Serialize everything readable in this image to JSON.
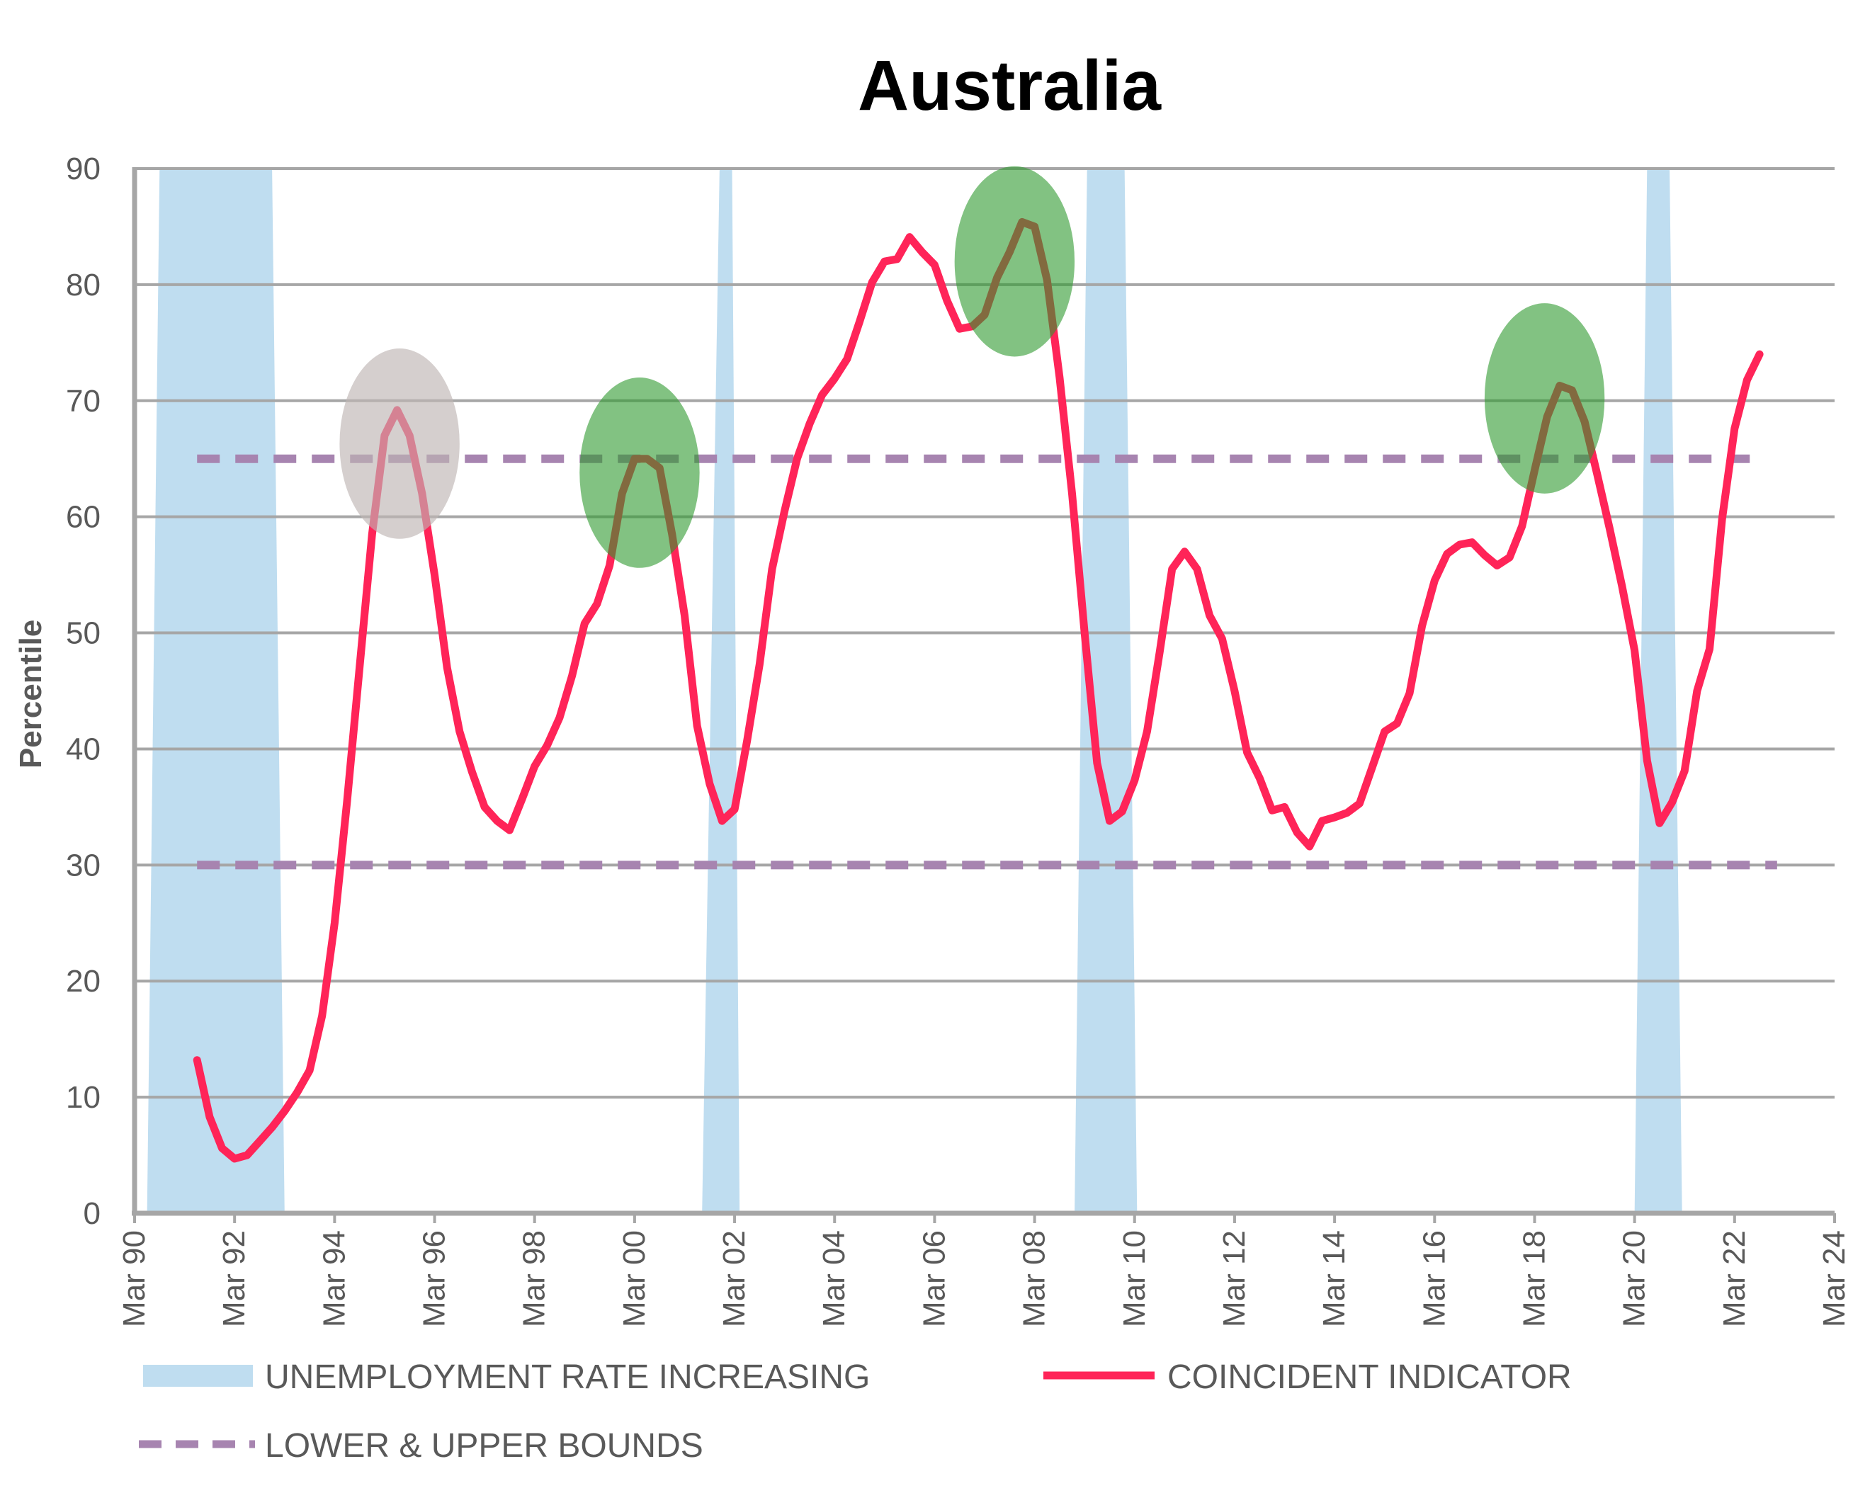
{
  "chart_data": {
    "type": "line",
    "title": "Australia",
    "ylabel": "Percentile",
    "xlabel": "",
    "ylim": [
      0,
      90
    ],
    "yticks": [
      0,
      10,
      20,
      30,
      40,
      50,
      60,
      70,
      80,
      90
    ],
    "xlim": [
      1990.0,
      2024.0
    ],
    "xticks": [
      {
        "value": 1990,
        "label": "Mar 90"
      },
      {
        "value": 1992,
        "label": "Mar 92"
      },
      {
        "value": 1994,
        "label": "Mar 94"
      },
      {
        "value": 1996,
        "label": "Mar 96"
      },
      {
        "value": 1998,
        "label": "Mar 98"
      },
      {
        "value": 2000,
        "label": "Mar 00"
      },
      {
        "value": 2002,
        "label": "Mar 02"
      },
      {
        "value": 2004,
        "label": "Mar 04"
      },
      {
        "value": 2006,
        "label": "Mar 06"
      },
      {
        "value": 2008,
        "label": "Mar 08"
      },
      {
        "value": 2010,
        "label": "Mar 10"
      },
      {
        "value": 2012,
        "label": "Mar 12"
      },
      {
        "value": 2014,
        "label": "Mar 14"
      },
      {
        "value": 2016,
        "label": "Mar 16"
      },
      {
        "value": 2018,
        "label": "Mar 18"
      },
      {
        "value": 2020,
        "label": "Mar 20"
      },
      {
        "value": 2022,
        "label": "Mar 22"
      },
      {
        "value": 2024,
        "label": "Mar 24"
      }
    ],
    "grid": true,
    "colors": {
      "indicator": "#FF2458",
      "bounds": "#A784B0",
      "shading": "#BFDDF0",
      "highlight": "#2E9A2E",
      "highlight_gray": "#BEB6B4",
      "grid": "#A6A6A6",
      "axis": "#A6A6A6"
    },
    "shaded_regions": {
      "name": "UNEMPLOYMENT RATE INCREASING",
      "regions": [
        {
          "top_start": 1990.5,
          "top_end": 1992.75,
          "bottom_start": 1990.25,
          "bottom_end": 1993.0
        },
        {
          "top_start": 2001.7,
          "top_end": 2001.95,
          "bottom_start": 2001.35,
          "bottom_end": 2002.1
        },
        {
          "top_start": 2009.05,
          "top_end": 2009.8,
          "bottom_start": 2008.8,
          "bottom_end": 2010.05
        },
        {
          "top_start": 2020.25,
          "top_end": 2020.7,
          "bottom_start": 2020.0,
          "bottom_end": 2020.95
        }
      ]
    },
    "bounds": {
      "name": "LOWER & UPPER BOUNDS",
      "upper": {
        "value": 65,
        "x": [
          1991.25,
          2022.6
        ]
      },
      "lower": {
        "value": 30,
        "x": [
          1991.25,
          2022.85
        ]
      }
    },
    "highlights": [
      {
        "cx": 1995.3,
        "cy": 66.3,
        "rx": 1.2,
        "ry": 8.2,
        "color": "gray"
      },
      {
        "cx": 2000.1,
        "cy": 63.8,
        "rx": 1.2,
        "ry": 8.2,
        "color": "green"
      },
      {
        "cx": 2007.6,
        "cy": 82.0,
        "rx": 1.2,
        "ry": 8.2,
        "color": "green"
      },
      {
        "cx": 2018.2,
        "cy": 70.2,
        "rx": 1.2,
        "ry": 8.2,
        "color": "green"
      }
    ],
    "series": [
      {
        "name": "COINCIDENT INDICATOR",
        "x": [
          1991.25,
          1991.5,
          1991.75,
          1992.0,
          1992.25,
          1992.5,
          1992.75,
          1993.0,
          1993.25,
          1993.5,
          1993.75,
          1994.0,
          1994.25,
          1994.5,
          1994.75,
          1995.0,
          1995.25,
          1995.5,
          1995.75,
          1996.0,
          1996.25,
          1996.5,
          1996.75,
          1997.0,
          1997.25,
          1997.5,
          1997.75,
          1998.0,
          1998.25,
          1998.5,
          1998.75,
          1999.0,
          1999.25,
          1999.5,
          1999.75,
          2000.0,
          2000.25,
          2000.5,
          2000.75,
          2001.0,
          2001.25,
          2001.5,
          2001.75,
          2002.0,
          2002.25,
          2002.5,
          2002.75,
          2003.0,
          2003.25,
          2003.5,
          2003.75,
          2004.0,
          2004.25,
          2004.5,
          2004.75,
          2005.0,
          2005.25,
          2005.5,
          2005.75,
          2006.0,
          2006.25,
          2006.5,
          2006.75,
          2007.0,
          2007.25,
          2007.5,
          2007.75,
          2008.0,
          2008.25,
          2008.5,
          2008.75,
          2009.0,
          2009.25,
          2009.5,
          2009.75,
          2010.0,
          2010.25,
          2010.5,
          2010.75,
          2011.0,
          2011.25,
          2011.5,
          2011.75,
          2012.0,
          2012.25,
          2012.5,
          2012.75,
          2013.0,
          2013.25,
          2013.5,
          2013.75,
          2014.0,
          2014.25,
          2014.5,
          2014.75,
          2015.0,
          2015.25,
          2015.5,
          2015.75,
          2016.0,
          2016.25,
          2016.5,
          2016.75,
          2017.0,
          2017.25,
          2017.5,
          2017.75,
          2018.0,
          2018.25,
          2018.5,
          2018.75,
          2019.0,
          2019.25,
          2019.5,
          2019.75,
          2020.0,
          2020.25,
          2020.5,
          2020.75,
          2021.0,
          2021.25,
          2021.5,
          2021.75,
          2022.0,
          2022.25,
          2022.5
        ],
        "values": [
          13.2,
          8.3,
          5.6,
          4.7,
          5.0,
          6.2,
          7.4,
          8.8,
          10.4,
          12.3,
          17.0,
          25.0,
          35.5,
          47.0,
          58.5,
          67.0,
          69.2,
          67.0,
          62.0,
          55.0,
          47.0,
          41.5,
          38.0,
          35.0,
          33.8,
          33.0,
          35.7,
          38.5,
          40.3,
          42.7,
          46.3,
          50.8,
          52.5,
          55.8,
          62.0,
          65.0,
          65.0,
          64.2,
          58.5,
          51.5,
          42.0,
          37.0,
          33.8,
          34.8,
          40.7,
          47.3,
          55.5,
          60.5,
          65.0,
          68.0,
          70.5,
          71.9,
          73.6,
          76.8,
          80.2,
          82.0,
          82.2,
          84.1,
          82.8,
          81.7,
          78.6,
          76.2,
          76.4,
          77.4,
          80.6,
          82.8,
          85.4,
          85.0,
          80.4,
          72.0,
          62.0,
          50.0,
          38.8,
          33.8,
          34.6,
          37.3,
          41.5,
          48.3,
          55.5,
          57.0,
          55.5,
          51.5,
          49.5,
          45.0,
          39.7,
          37.5,
          34.7,
          35.0,
          32.8,
          31.6,
          33.8,
          34.1,
          34.5,
          35.3,
          38.4,
          41.5,
          42.2,
          44.8,
          50.6,
          54.5,
          56.8,
          57.6,
          57.8,
          56.7,
          55.8,
          56.5,
          59.2,
          64.0,
          68.6,
          71.3,
          70.9,
          68.2,
          63.7,
          59.0,
          54.0,
          48.5,
          39.0,
          33.6,
          35.4,
          38.1,
          45.0,
          48.6,
          59.8,
          67.6,
          71.8,
          74.0
        ]
      }
    ],
    "legend": {
      "placement": "bottom",
      "items": [
        {
          "label": "UNEMPLOYMENT RATE INCREASING",
          "kind": "area"
        },
        {
          "label": "COINCIDENT INDICATOR",
          "kind": "line"
        },
        {
          "label": "LOWER & UPPER BOUNDS",
          "kind": "dashed"
        }
      ]
    }
  }
}
